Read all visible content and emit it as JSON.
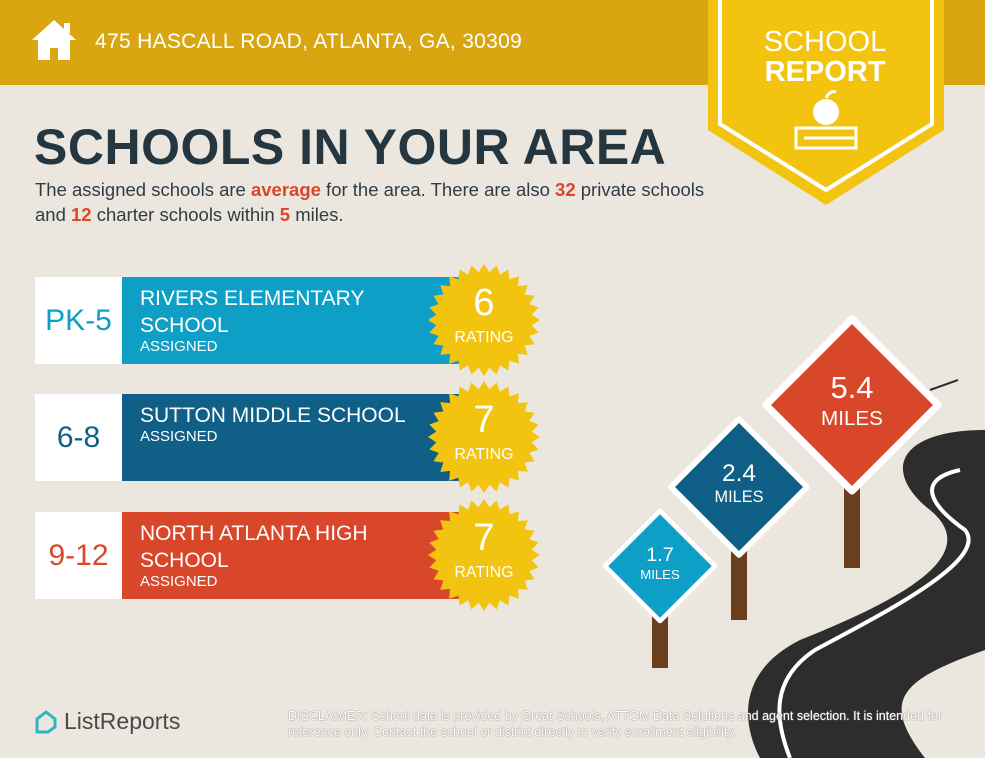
{
  "header": {
    "address": "475 HASCALL ROAD, ATLANTA, GA, 30309",
    "icon": "home-icon"
  },
  "badge": {
    "line1": "SCHOOL",
    "line2": "REPORT",
    "icon": "apple-books-icon"
  },
  "title": "SCHOOLS IN YOUR AREA",
  "intro": {
    "p1": "The assigned schools are ",
    "rating_word": "average",
    "p2": " for the area. There are also ",
    "private_count": "32",
    "p3": " private schools and ",
    "charter_count": "12",
    "p4": " charter schools within ",
    "miles": "5",
    "p5": " miles."
  },
  "schools": [
    {
      "grade": "PK-5",
      "name": "RIVERS ELEMENTARY SCHOOL",
      "status": "ASSIGNED",
      "rating": "6",
      "rating_label": "RATING",
      "color": "#0e9fc6"
    },
    {
      "grade": "6-8",
      "name": "SUTTON MIDDLE SCHOOL",
      "status": "ASSIGNED",
      "rating": "7",
      "rating_label": "RATING",
      "color": "#0f5f87"
    },
    {
      "grade": "9-12",
      "name": "NORTH ATLANTA HIGH SCHOOL",
      "status": "ASSIGNED",
      "rating": "7",
      "rating_label": "RATING",
      "color": "#d9472b"
    }
  ],
  "signs": [
    {
      "value": "1.7",
      "unit": "MILES",
      "color": "#0e9fc6"
    },
    {
      "value": "2.4",
      "unit": "MILES",
      "color": "#0f5f87"
    },
    {
      "value": "5.4",
      "unit": "MILES",
      "color": "#d9472b"
    }
  ],
  "footer": {
    "logo": "ListReports",
    "disclaimer_label": "DISCLAIMER:",
    "disclaimer": " School data is provided by Great Schools, ATTOM Data Solutions and agent selection. It is intended for reference only. Contact the school or district directly to verify enrollment eligibility."
  }
}
